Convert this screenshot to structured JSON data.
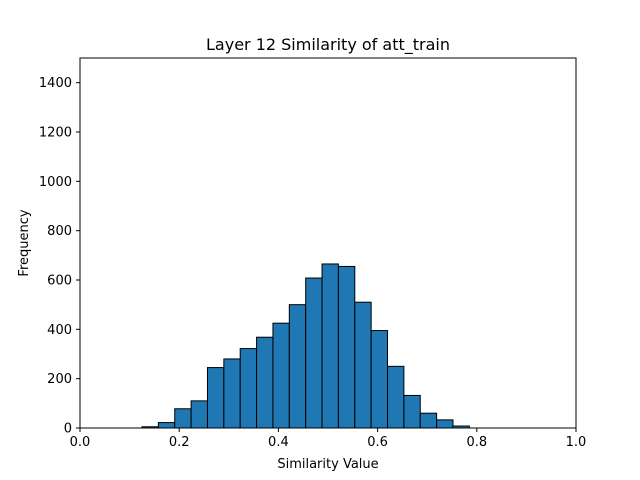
{
  "chart_data": {
    "type": "bar",
    "title": "Layer 12 Similarity of att_train",
    "xlabel": "Similarity Value",
    "ylabel": "Frequency",
    "xlim": [
      0.0,
      1.0
    ],
    "ylim": [
      0,
      1500
    ],
    "xticks": [
      "0.0",
      "0.2",
      "0.4",
      "0.6",
      "0.8",
      "1.0"
    ],
    "yticks": [
      "0",
      "200",
      "400",
      "600",
      "800",
      "1000",
      "1200",
      "1400"
    ],
    "grid": false,
    "bar_color": "#1f77b4",
    "edge_color": "#000000",
    "bins": [
      {
        "x0": 0.125,
        "x1": 0.158,
        "value": 5
      },
      {
        "x0": 0.158,
        "x1": 0.191,
        "value": 22
      },
      {
        "x0": 0.191,
        "x1": 0.224,
        "value": 78
      },
      {
        "x0": 0.224,
        "x1": 0.257,
        "value": 110
      },
      {
        "x0": 0.257,
        "x1": 0.29,
        "value": 245
      },
      {
        "x0": 0.29,
        "x1": 0.323,
        "value": 280
      },
      {
        "x0": 0.323,
        "x1": 0.356,
        "value": 322
      },
      {
        "x0": 0.356,
        "x1": 0.389,
        "value": 368
      },
      {
        "x0": 0.389,
        "x1": 0.422,
        "value": 425
      },
      {
        "x0": 0.422,
        "x1": 0.455,
        "value": 500
      },
      {
        "x0": 0.455,
        "x1": 0.488,
        "value": 608
      },
      {
        "x0": 0.488,
        "x1": 0.521,
        "value": 665
      },
      {
        "x0": 0.521,
        "x1": 0.554,
        "value": 655
      },
      {
        "x0": 0.554,
        "x1": 0.587,
        "value": 510
      },
      {
        "x0": 0.587,
        "x1": 0.62,
        "value": 395
      },
      {
        "x0": 0.62,
        "x1": 0.653,
        "value": 250
      },
      {
        "x0": 0.653,
        "x1": 0.686,
        "value": 132
      },
      {
        "x0": 0.686,
        "x1": 0.719,
        "value": 60
      },
      {
        "x0": 0.719,
        "x1": 0.752,
        "value": 33
      },
      {
        "x0": 0.752,
        "x1": 0.785,
        "value": 8
      }
    ]
  }
}
